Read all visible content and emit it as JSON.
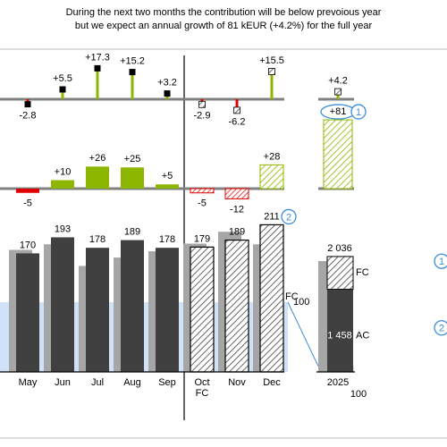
{
  "title": [
    "During the next two months the contribution will be below prevoious year",
    "but we expect an annual growth of 81 kEUR (+4.2%) for the full year"
  ],
  "months": [
    "May",
    "Jun",
    "Jul",
    "Aug",
    "Sep",
    "Oct",
    "Nov",
    "Dec"
  ],
  "forecast": [
    false,
    false,
    false,
    false,
    false,
    true,
    true,
    true
  ],
  "fc_month_note": "FC",
  "rel_delta": {
    "values": [
      -2.8,
      5.5,
      17.3,
      15.2,
      3.2,
      -2.9,
      -6.2,
      15.5
    ],
    "value_labels": [
      "-2.8",
      "+5.5",
      "+17.3",
      "+15.2",
      "+3.2",
      "-2.9",
      "-6.2",
      "+15.5"
    ]
  },
  "abs_delta": {
    "values": [
      -5,
      10,
      26,
      25,
      5,
      -5,
      -12,
      28
    ],
    "value_labels": [
      "-5",
      "+10",
      "+26",
      "+25",
      "+5",
      "-5",
      "-12",
      "+28"
    ]
  },
  "ac": [
    170,
    193,
    178,
    189,
    178,
    179,
    189,
    211
  ],
  "py": [
    175,
    183,
    152,
    164,
    173,
    184,
    201,
    183
  ],
  "fc_label": "FC",
  "year": {
    "label": "2025",
    "ac": 1458,
    "ac_label": "1 458",
    "fc": 578,
    "total": 2036,
    "total_label": "2 036",
    "py": 1955,
    "rel_delta": 4.2,
    "rel_label": "+4.2",
    "abs_delta": 81,
    "abs_label": "+81",
    "ac_text": "AC",
    "fc_text": "FC"
  },
  "scale_marker": {
    "month": 100,
    "year": 100
  },
  "notes": [
    "1",
    "2"
  ]
}
